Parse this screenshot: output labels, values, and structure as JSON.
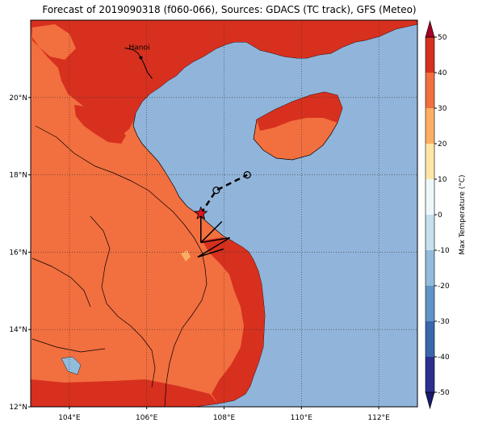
{
  "title": "Forecast of 2019090318 (f060-066), Sources: GDACS (TC track), GFS (Meteo)",
  "map": {
    "lon_range": [
      103,
      113
    ],
    "lat_range": [
      12,
      22
    ],
    "x_ticks": [
      {
        "value": 104,
        "label": "104°E"
      },
      {
        "value": 106,
        "label": "106°E"
      },
      {
        "value": 108,
        "label": "108°E"
      },
      {
        "value": 110,
        "label": "110°E"
      },
      {
        "value": 112,
        "label": "112°E"
      }
    ],
    "y_ticks": [
      {
        "value": 12,
        "label": "12°N"
      },
      {
        "value": 14,
        "label": "14°N"
      },
      {
        "value": 16,
        "label": "16°N"
      },
      {
        "value": 18,
        "label": "18°N"
      },
      {
        "value": 20,
        "label": "20°N"
      }
    ],
    "grid": "dotted",
    "city": {
      "name": "Hanoi",
      "lon": 105.85,
      "lat": 21.03
    },
    "track": {
      "current": {
        "lon": 107.4,
        "lat": 17.0
      },
      "forecast": [
        {
          "lon": 107.8,
          "lat": 17.6
        },
        {
          "lon": 108.6,
          "lat": 18.0
        }
      ]
    },
    "colors": {
      "sea": "#91b4da",
      "land_warm": "#f26f3f",
      "land_hot": "#d7301f",
      "coast": "#000000"
    }
  },
  "colorbar": {
    "label": "Max Temperature (°C)",
    "range": [
      -50,
      50
    ],
    "ticks": [
      -50,
      -40,
      -30,
      -20,
      -10,
      0,
      10,
      20,
      30,
      40,
      50
    ],
    "bands": [
      {
        "from": -50,
        "to": -40,
        "color": "#2b2f8f"
      },
      {
        "from": -40,
        "to": -30,
        "color": "#3a66ad"
      },
      {
        "from": -30,
        "to": -20,
        "color": "#5f94c6"
      },
      {
        "from": -20,
        "to": -10,
        "color": "#91bcdb"
      },
      {
        "from": -10,
        "to": 0,
        "color": "#c6e0ee"
      },
      {
        "from": 0,
        "to": 10,
        "color": "#eef8fb"
      },
      {
        "from": 10,
        "to": 20,
        "color": "#fee7a6"
      },
      {
        "from": 20,
        "to": 30,
        "color": "#fcae62"
      },
      {
        "from": 30,
        "to": 40,
        "color": "#f26f3f"
      },
      {
        "from": 40,
        "to": 50,
        "color": "#d7301f"
      },
      {
        "from": 50,
        "to": 60,
        "color": "#a50026"
      }
    ]
  }
}
